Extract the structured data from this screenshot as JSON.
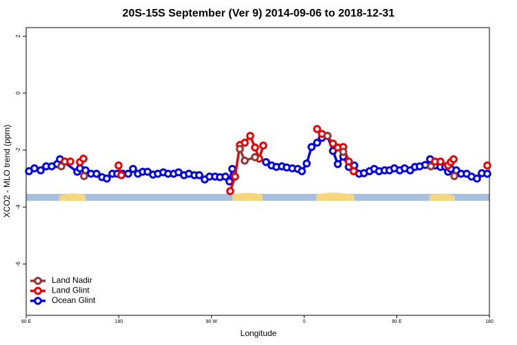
{
  "chart_data": {
    "type": "line",
    "title": "20S-15S September (Ver 9)   2014-09-06 to 2018-12-31",
    "xlabel": "Longitude",
    "ylabel": "XCO2 - MLO trend (ppm)",
    "xlim": [
      90,
      540
    ],
    "ylim": [
      -7.8,
      2.3
    ],
    "xticks": [
      {
        "value": 90,
        "label": "90 E"
      },
      {
        "value": 180,
        "label": "180"
      },
      {
        "value": 270,
        "label": "90 W"
      },
      {
        "value": 360,
        "label": "0"
      },
      {
        "value": 450,
        "label": "90 E"
      },
      {
        "value": 540,
        "label": "180"
      }
    ],
    "yticks": [
      2,
      0,
      -2,
      -4,
      -6
    ],
    "legend": "bottom-left",
    "series": [
      {
        "name": "Land Nadir",
        "color": "#993333",
        "x": [
          124.1,
          null,
          146.2,
          null,
          297.6,
          302.3,
          312.3,
          null,
          382.6,
          null,
          398.0,
          null,
          483.1,
          null,
          505.9
        ],
        "values": [
          -2.57,
          null,
          -2.91,
          null,
          -1.96,
          -2.37,
          -2.25,
          null,
          -1.5,
          null,
          -2.06,
          null,
          -2.57,
          null,
          -2.91
        ]
      },
      {
        "name": "Land Glint",
        "color": "#ee0000",
        "x": [
          127.5,
          132.9,
          null,
          142.2,
          145.6,
          null,
          179.7,
          182.4,
          null,
          288.2,
          292.9,
          297.6,
          302.3,
          307.6,
          312.3,
          316.3,
          320.3,
          null,
          372.6,
          377.3,
          382.6,
          388.0,
          392.7,
          398.0,
          403.4,
          408.1,
          null,
          487.1,
          492.4,
          499.8,
          502.5,
          505.2,
          null,
          537.9
        ],
        "values": [
          -2.4,
          -2.4,
          null,
          -2.42,
          -2.3,
          null,
          -2.54,
          -2.88,
          null,
          -3.44,
          -2.93,
          -1.82,
          -1.74,
          -1.5,
          -1.91,
          -2.3,
          -1.84,
          null,
          -1.26,
          -1.43,
          -1.5,
          -1.77,
          -1.91,
          -1.89,
          -2.4,
          -2.74,
          null,
          -2.4,
          -2.4,
          -2.54,
          -2.42,
          -2.32,
          null,
          -2.54
        ]
      },
      {
        "name": "Ocean Glint",
        "color": "#0000ee",
        "x": [
          92.7,
          98.0,
          104.1,
          109.4,
          114.8,
          120.1,
          122.8,
          139.6,
          142.2,
          147.6,
          152.9,
          158.3,
          163.7,
          168.3,
          173.7,
          178.4,
          183.7,
          189.1,
          193.8,
          198.5,
          203.2,
          207.9,
          213.2,
          217.9,
          223.2,
          227.9,
          233.3,
          238.0,
          243.3,
          248.0,
          253.4,
          258.1,
          263.4,
          268.1,
          273.5,
          278.2,
          283.5,
          287.5,
          290.2,
          null,
          323.0,
          328.4,
          333.1,
          338.4,
          343.1,
          348.5,
          353.8,
          357.8,
          362.5,
          367.2,
          372.6,
          377.3,
          382.6,
          388.0,
          392.7,
          398.0,
          403.4,
          408.7,
          413.4,
          418.1,
          423.5,
          428.1,
          432.8,
          438.2,
          442.9,
          447.6,
          452.9,
          457.6,
          463.0,
          467.7,
          472.3,
          477.7,
          482.4,
          487.1,
          492.4,
          497.1,
          499.8,
          502.5,
          507.8,
          512.5,
          517.9,
          522.6,
          527.9,
          532.6,
          537.9
        ],
        "values": [
          -2.74,
          -2.64,
          -2.71,
          -2.57,
          -2.57,
          -2.49,
          -2.32,
          -2.76,
          -2.64,
          -2.71,
          -2.83,
          -2.83,
          -2.95,
          -3.0,
          -2.83,
          -2.83,
          -2.83,
          -2.83,
          -2.66,
          -2.83,
          -2.76,
          -2.76,
          -2.86,
          -2.83,
          -2.78,
          -2.83,
          -2.83,
          -2.78,
          -2.88,
          -2.83,
          -2.88,
          -2.88,
          -3.03,
          -2.93,
          -2.93,
          -2.95,
          -2.93,
          -3.1,
          -2.66,
          null,
          -2.42,
          -2.54,
          -2.59,
          -2.57,
          -2.61,
          -2.64,
          -2.66,
          -2.74,
          -2.47,
          -1.89,
          -1.74,
          -1.57,
          -1.5,
          -2.03,
          -2.49,
          -2.23,
          -2.59,
          -2.54,
          -2.83,
          -2.81,
          -2.74,
          -2.66,
          -2.74,
          -2.71,
          -2.71,
          -2.64,
          -2.71,
          -2.64,
          -2.71,
          -2.59,
          -2.57,
          -2.52,
          -2.32,
          -2.54,
          -2.59,
          -2.59,
          -2.76,
          -2.66,
          -2.71,
          -2.83,
          -2.83,
          -2.93,
          -3.0,
          -2.81,
          -2.83
        ]
      }
    ]
  }
}
